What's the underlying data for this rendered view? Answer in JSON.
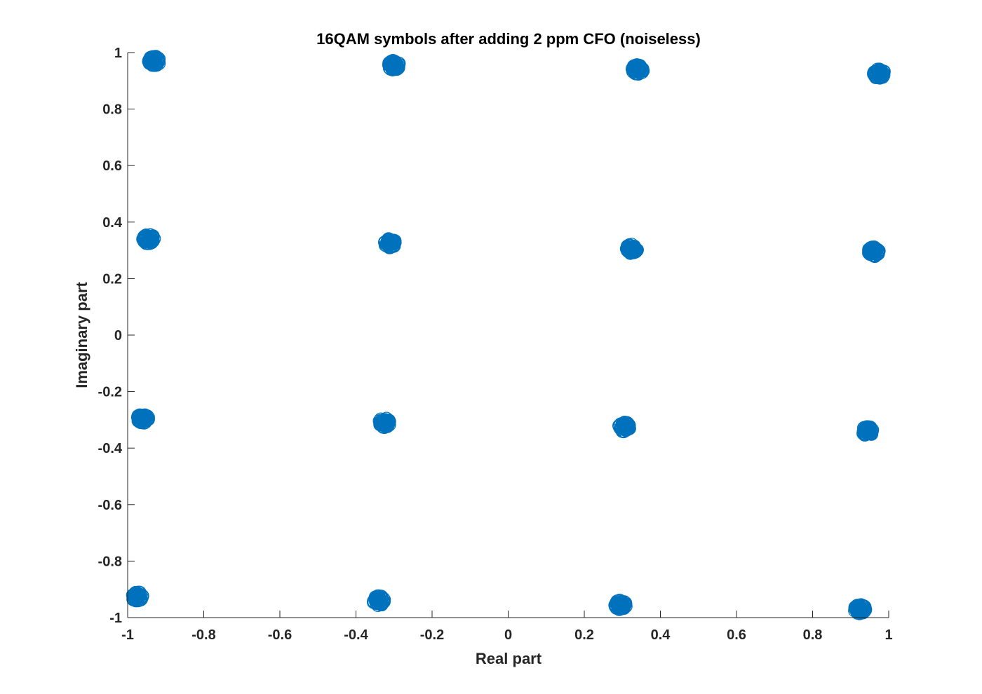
{
  "chart_data": {
    "type": "scatter",
    "title": "16QAM symbols after adding 2 ppm CFO (noiseless)",
    "xlabel": "Real part",
    "ylabel": "Imaginary part",
    "xlim": [
      -1,
      1
    ],
    "ylim": [
      -1,
      1
    ],
    "xticks": [
      -1,
      -0.8,
      -0.6,
      -0.4,
      -0.2,
      0,
      0.2,
      0.4,
      0.6,
      0.8,
      1
    ],
    "yticks": [
      -1,
      -0.8,
      -0.6,
      -0.4,
      -0.2,
      0,
      0.2,
      0.4,
      0.6,
      0.8,
      1
    ],
    "xtick_labels": [
      "-1",
      "-0.8",
      "-0.6",
      "-0.4",
      "-0.2",
      "0",
      "0.2",
      "0.4",
      "0.6",
      "0.8",
      "1"
    ],
    "ytick_labels": [
      "-1",
      "-0.8",
      "-0.6",
      "-0.4",
      "-0.2",
      "0",
      "0.2",
      "0.4",
      "0.6",
      "0.8",
      "1"
    ],
    "grid": false,
    "legend": "none",
    "marker": "circle-open",
    "series": [
      {
        "color": "#0072bd",
        "points": [
          {
            "x": -0.93,
            "y": 0.97
          },
          {
            "x": -0.3,
            "y": 0.955
          },
          {
            "x": 0.34,
            "y": 0.94
          },
          {
            "x": 0.975,
            "y": 0.925
          },
          {
            "x": -0.945,
            "y": 0.34
          },
          {
            "x": -0.31,
            "y": 0.325
          },
          {
            "x": 0.325,
            "y": 0.305
          },
          {
            "x": 0.96,
            "y": 0.295
          },
          {
            "x": -0.96,
            "y": -0.295
          },
          {
            "x": -0.325,
            "y": -0.31
          },
          {
            "x": 0.305,
            "y": -0.325
          },
          {
            "x": 0.945,
            "y": -0.34
          },
          {
            "x": -0.975,
            "y": -0.925
          },
          {
            "x": -0.34,
            "y": -0.94
          },
          {
            "x": 0.295,
            "y": -0.955
          },
          {
            "x": 0.925,
            "y": -0.97
          }
        ]
      }
    ]
  }
}
